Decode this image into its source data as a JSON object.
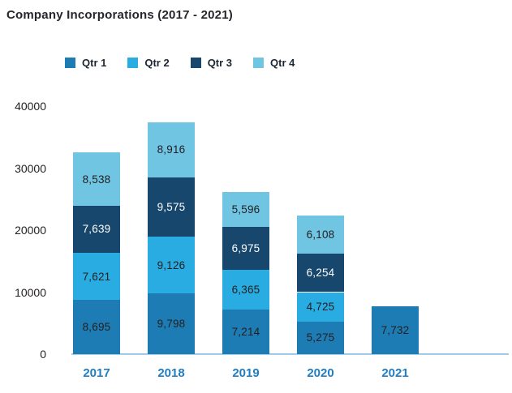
{
  "title": "Company Incorporations (2017 - 2021)",
  "chart_data": {
    "type": "bar",
    "stacked": true,
    "title": "Company Incorporations (2017 - 2021)",
    "categories": [
      "2017",
      "2018",
      "2019",
      "2020",
      "2021"
    ],
    "series": [
      {
        "name": "Qtr 1",
        "color": "#1d7cb4",
        "label_color": "#231f20",
        "values": [
          8695,
          9798,
          7214,
          5275,
          7732
        ]
      },
      {
        "name": "Qtr 2",
        "color": "#29ace2",
        "label_color": "#231f20",
        "values": [
          7621,
          9126,
          6365,
          4725,
          null
        ]
      },
      {
        "name": "Qtr 3",
        "color": "#17476c",
        "label_color": "#ffffff",
        "values": [
          7639,
          9575,
          6975,
          6254,
          null
        ]
      },
      {
        "name": "Qtr 4",
        "color": "#70c5e3",
        "label_color": "#231f20",
        "values": [
          8538,
          8916,
          5596,
          6108,
          null
        ]
      }
    ],
    "y_ticks": [
      0,
      10000,
      20000,
      30000,
      40000
    ],
    "ylim": [
      0,
      40000
    ],
    "grid": false,
    "legend_position": "top",
    "data_labels": true,
    "axis_line_color": "#a0cbe8",
    "x_label_color": "#1f7ec1"
  }
}
